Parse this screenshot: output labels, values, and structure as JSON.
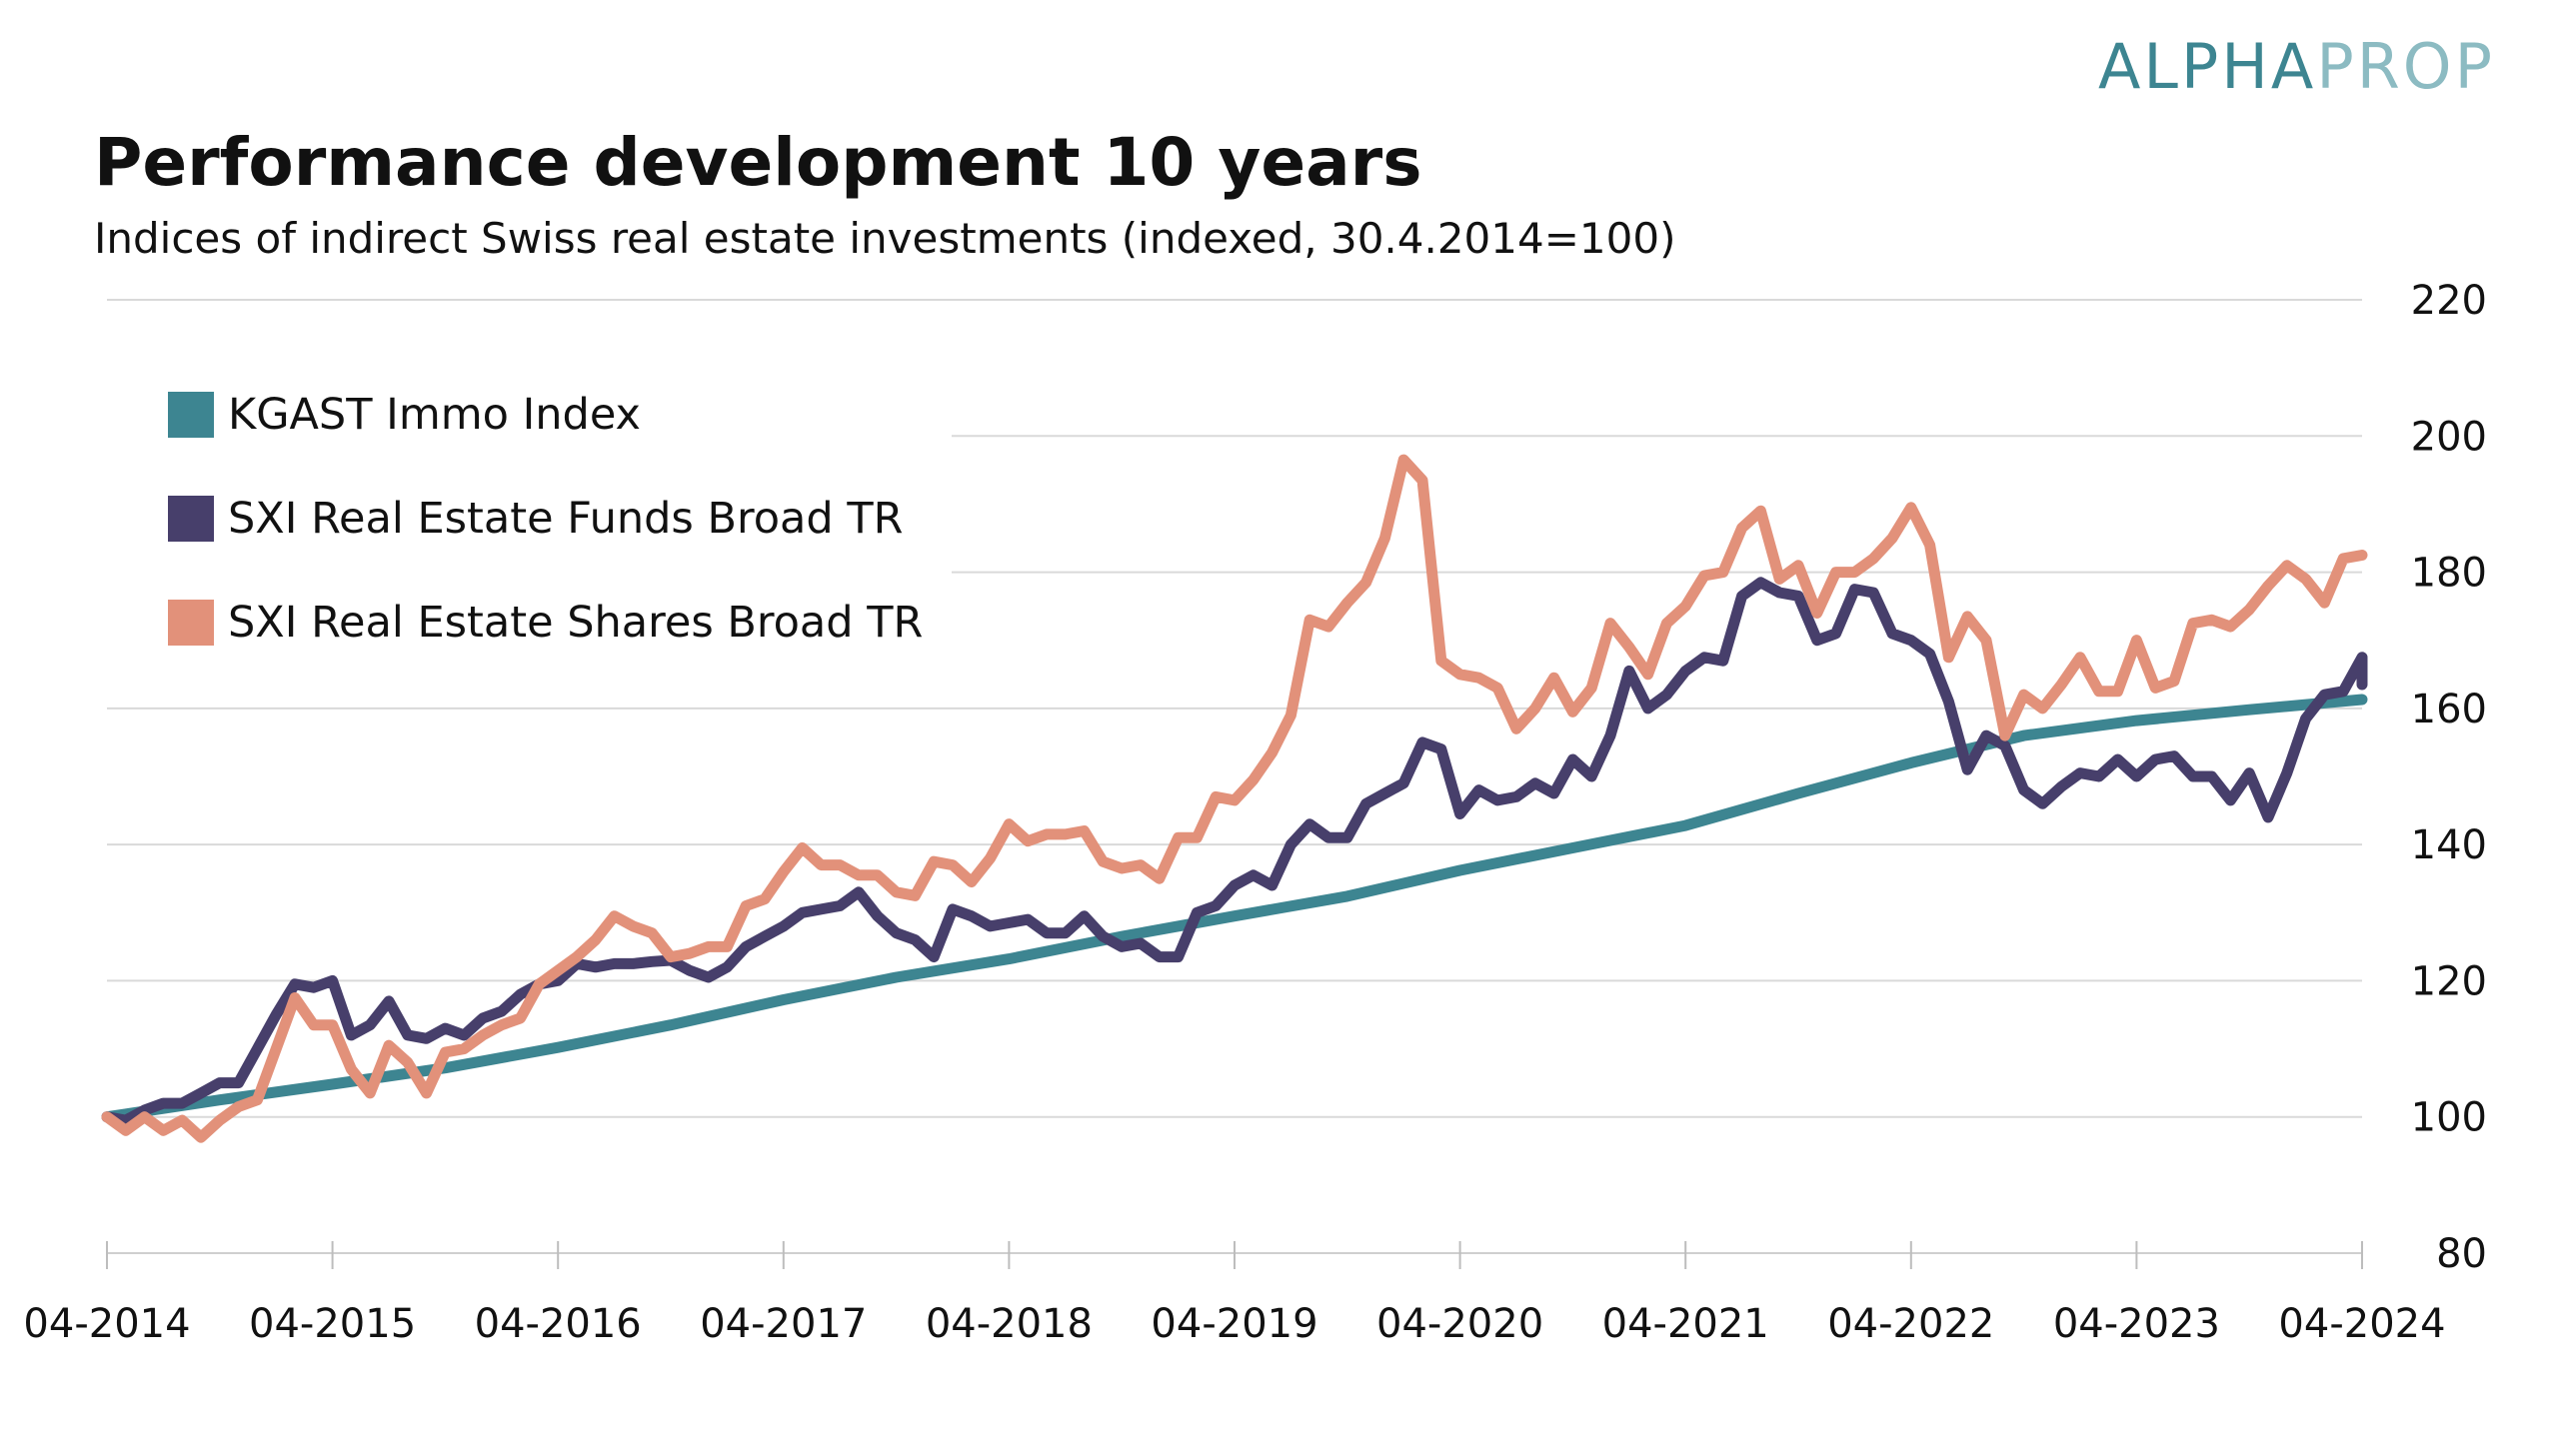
{
  "logo": {
    "part1": "ALPHA",
    "part2": "PROP"
  },
  "chart_data": {
    "type": "line",
    "title": "Performance development 10 years",
    "subtitle": "Indices of indirect Swiss real estate investments (indexed, 30.4.2014=100)",
    "xlabel": "",
    "ylabel": "",
    "ylim": [
      80,
      220
    ],
    "yticks": [
      80,
      100,
      120,
      140,
      160,
      180,
      200,
      220
    ],
    "xlim": [
      0,
      120
    ],
    "xticks": [
      {
        "value": 0,
        "label": "04-2014"
      },
      {
        "value": 12,
        "label": "04-2015"
      },
      {
        "value": 24,
        "label": "04-2016"
      },
      {
        "value": 36,
        "label": "04-2017"
      },
      {
        "value": 48,
        "label": "04-2018"
      },
      {
        "value": 60,
        "label": "04-2019"
      },
      {
        "value": 72,
        "label": "04-2020"
      },
      {
        "value": 84,
        "label": "04-2021"
      },
      {
        "value": 96,
        "label": "04-2022"
      },
      {
        "value": 108,
        "label": "04-2023"
      },
      {
        "value": 120,
        "label": "04-2024"
      }
    ],
    "grid": true,
    "legend_position": "top-left",
    "axis_position": "right",
    "series": [
      {
        "name": "KGAST Immo Index",
        "color": "#3d8591",
        "points": [
          [
            0,
            100
          ],
          [
            6,
            102.5
          ],
          [
            12,
            104.8
          ],
          [
            18,
            107.2
          ],
          [
            24,
            110.2
          ],
          [
            30,
            113.5
          ],
          [
            36,
            117.2
          ],
          [
            42,
            120.5
          ],
          [
            48,
            123.2
          ],
          [
            54,
            126.5
          ],
          [
            60,
            129.5
          ],
          [
            66,
            132.4
          ],
          [
            72,
            136.2
          ],
          [
            78,
            139.5
          ],
          [
            84,
            142.8
          ],
          [
            90,
            147.5
          ],
          [
            96,
            152
          ],
          [
            102,
            156
          ],
          [
            108,
            158.2
          ],
          [
            114,
            159.8
          ],
          [
            120,
            161.3
          ]
        ]
      },
      {
        "name": "SXI Real Estate Funds Broad TR",
        "color": "#473f6b",
        "points": [
          [
            0,
            100
          ],
          [
            1,
            99.5
          ],
          [
            2,
            101
          ],
          [
            3,
            102
          ],
          [
            4,
            102
          ],
          [
            5,
            103.5
          ],
          [
            6,
            105
          ],
          [
            7,
            105
          ],
          [
            8,
            110
          ],
          [
            9,
            115
          ],
          [
            10,
            119.5
          ],
          [
            11,
            119
          ],
          [
            12,
            120
          ],
          [
            13,
            112
          ],
          [
            14,
            113.5
          ],
          [
            15,
            117
          ],
          [
            16,
            112
          ],
          [
            17,
            111.5
          ],
          [
            18,
            113
          ],
          [
            19,
            112
          ],
          [
            20,
            114.5
          ],
          [
            21,
            115.5
          ],
          [
            22,
            118
          ],
          [
            23,
            119.5
          ],
          [
            24,
            120
          ],
          [
            25,
            122.5
          ],
          [
            26,
            122
          ],
          [
            27,
            122.5
          ],
          [
            28,
            122.5
          ],
          [
            29,
            122.8
          ],
          [
            30,
            123
          ],
          [
            31,
            121.5
          ],
          [
            32,
            120.5
          ],
          [
            33,
            122
          ],
          [
            34,
            125
          ],
          [
            35,
            126.5
          ],
          [
            36,
            128
          ],
          [
            37,
            130
          ],
          [
            38,
            130.5
          ],
          [
            39,
            131
          ],
          [
            40,
            133
          ],
          [
            41,
            129.5
          ],
          [
            42,
            127
          ],
          [
            43,
            126
          ],
          [
            44,
            123.5
          ],
          [
            45,
            130.5
          ],
          [
            46,
            129.5
          ],
          [
            47,
            128
          ],
          [
            48,
            128.5
          ],
          [
            49,
            129
          ],
          [
            50,
            127
          ],
          [
            51,
            127
          ],
          [
            52,
            129.5
          ],
          [
            53,
            126.5
          ],
          [
            54,
            125
          ],
          [
            55,
            125.5
          ],
          [
            56,
            123.5
          ],
          [
            57,
            123.5
          ],
          [
            58,
            130
          ],
          [
            59,
            131
          ],
          [
            60,
            134
          ],
          [
            61,
            135.5
          ],
          [
            62,
            134
          ],
          [
            63,
            140
          ],
          [
            64,
            143
          ],
          [
            65,
            141
          ],
          [
            66,
            141
          ],
          [
            67,
            146
          ],
          [
            68,
            147.5
          ],
          [
            69,
            149
          ],
          [
            70,
            155
          ],
          [
            71,
            154
          ],
          [
            72,
            144.5
          ],
          [
            73,
            148
          ],
          [
            74,
            146.5
          ],
          [
            75,
            147
          ],
          [
            76,
            149
          ],
          [
            77,
            147.5
          ],
          [
            78,
            152.5
          ],
          [
            79,
            150
          ],
          [
            80,
            156
          ],
          [
            81,
            165.5
          ],
          [
            82,
            160
          ],
          [
            83,
            162
          ],
          [
            84,
            165.5
          ],
          [
            85,
            167.5
          ],
          [
            86,
            167
          ],
          [
            87,
            176.5
          ],
          [
            88,
            178.5
          ],
          [
            89,
            177
          ],
          [
            90,
            176.5
          ],
          [
            91,
            170
          ],
          [
            92,
            171
          ],
          [
            93,
            177.5
          ],
          [
            94,
            177
          ],
          [
            95,
            171
          ],
          [
            96,
            170
          ],
          [
            97,
            168
          ],
          [
            98,
            161
          ],
          [
            99,
            151
          ],
          [
            100,
            156
          ],
          [
            101,
            154.5
          ],
          [
            102,
            148
          ],
          [
            103,
            146
          ],
          [
            104,
            148.5
          ],
          [
            105,
            150.5
          ],
          [
            106,
            150
          ],
          [
            107,
            152.5
          ],
          [
            108,
            150
          ],
          [
            109,
            152.5
          ],
          [
            110,
            153
          ],
          [
            111,
            150
          ],
          [
            112,
            150
          ],
          [
            113,
            146.5
          ],
          [
            114,
            150.5
          ],
          [
            115,
            144
          ],
          [
            116,
            150.5
          ],
          [
            117,
            158.5
          ],
          [
            118,
            162
          ],
          [
            119,
            162.5
          ],
          [
            120,
            167.5
          ],
          [
            121,
            163.5
          ]
        ]
      },
      {
        "name": "SXI Real Estate Shares Broad TR",
        "color": "#e2917a",
        "points": [
          [
            0,
            100
          ],
          [
            1,
            98
          ],
          [
            2,
            100
          ],
          [
            3,
            98
          ],
          [
            4,
            99.5
          ],
          [
            5,
            97
          ],
          [
            6,
            99.5
          ],
          [
            7,
            101.5
          ],
          [
            8,
            102.5
          ],
          [
            9,
            110
          ],
          [
            10,
            117.5
          ],
          [
            11,
            113.5
          ],
          [
            12,
            113.5
          ],
          [
            13,
            107
          ],
          [
            14,
            103.5
          ],
          [
            15,
            110.5
          ],
          [
            16,
            108
          ],
          [
            17,
            103.5
          ],
          [
            18,
            109.5
          ],
          [
            19,
            110
          ],
          [
            20,
            112
          ],
          [
            21,
            113.5
          ],
          [
            22,
            114.5
          ],
          [
            23,
            119.5
          ],
          [
            24,
            121.5
          ],
          [
            25,
            123.5
          ],
          [
            26,
            126
          ],
          [
            27,
            129.5
          ],
          [
            28,
            128
          ],
          [
            29,
            127
          ],
          [
            30,
            123.5
          ],
          [
            31,
            124
          ],
          [
            32,
            125
          ],
          [
            33,
            125
          ],
          [
            34,
            131
          ],
          [
            35,
            132
          ],
          [
            36,
            136
          ],
          [
            37,
            139.5
          ],
          [
            38,
            137
          ],
          [
            39,
            137
          ],
          [
            40,
            135.5
          ],
          [
            41,
            135.5
          ],
          [
            42,
            133
          ],
          [
            43,
            132.5
          ],
          [
            44,
            137.5
          ],
          [
            45,
            137
          ],
          [
            46,
            134.5
          ],
          [
            47,
            138
          ],
          [
            48,
            143
          ],
          [
            49,
            140.5
          ],
          [
            50,
            141.5
          ],
          [
            51,
            141.5
          ],
          [
            52,
            142
          ],
          [
            53,
            137.5
          ],
          [
            54,
            136.5
          ],
          [
            55,
            137
          ],
          [
            56,
            135
          ],
          [
            57,
            141
          ],
          [
            58,
            141
          ],
          [
            59,
            147
          ],
          [
            60,
            146.5
          ],
          [
            61,
            149.5
          ],
          [
            62,
            153.5
          ],
          [
            63,
            159
          ],
          [
            64,
            173
          ],
          [
            65,
            172
          ],
          [
            66,
            175.5
          ],
          [
            67,
            178.5
          ],
          [
            68,
            185
          ],
          [
            69,
            196.5
          ],
          [
            70,
            193.5
          ],
          [
            71,
            167
          ],
          [
            72,
            165
          ],
          [
            73,
            164.5
          ],
          [
            74,
            163
          ],
          [
            75,
            157
          ],
          [
            76,
            160
          ],
          [
            77,
            164.5
          ],
          [
            78,
            159.5
          ],
          [
            79,
            163
          ],
          [
            80,
            172.5
          ],
          [
            81,
            169
          ],
          [
            82,
            165
          ],
          [
            83,
            172.5
          ],
          [
            84,
            175
          ],
          [
            85,
            179.5
          ],
          [
            86,
            180
          ],
          [
            87,
            186.5
          ],
          [
            88,
            189
          ],
          [
            89,
            179
          ],
          [
            90,
            181
          ],
          [
            91,
            174
          ],
          [
            92,
            180
          ],
          [
            93,
            180
          ],
          [
            94,
            182
          ],
          [
            95,
            185
          ],
          [
            96,
            189.5
          ],
          [
            97,
            184
          ],
          [
            98,
            167.5
          ],
          [
            99,
            173.5
          ],
          [
            100,
            170
          ],
          [
            101,
            156
          ],
          [
            102,
            162
          ],
          [
            103,
            160
          ],
          [
            104,
            163.5
          ],
          [
            105,
            167.5
          ],
          [
            106,
            162.5
          ],
          [
            107,
            162.5
          ],
          [
            108,
            170
          ],
          [
            109,
            163
          ],
          [
            110,
            164
          ],
          [
            111,
            172.5
          ],
          [
            112,
            173
          ],
          [
            113,
            172
          ],
          [
            114,
            174.5
          ],
          [
            115,
            178
          ],
          [
            116,
            181
          ],
          [
            117,
            179
          ],
          [
            118,
            175.5
          ],
          [
            119,
            182
          ],
          [
            120,
            182.5
          ]
        ]
      }
    ]
  }
}
